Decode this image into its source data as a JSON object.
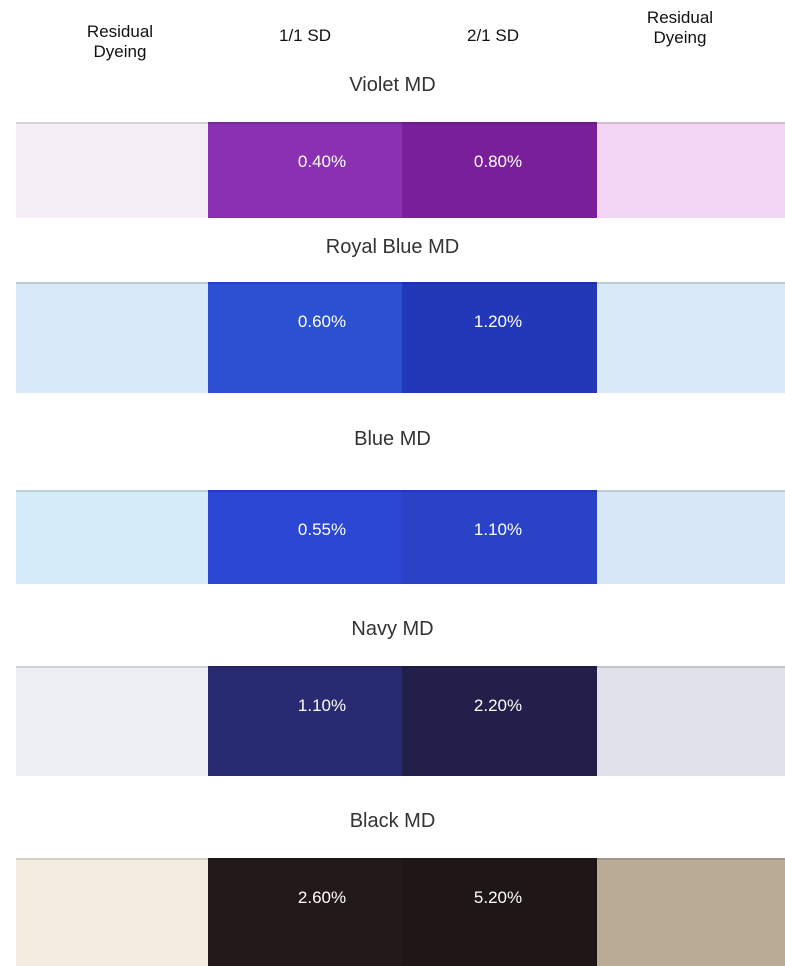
{
  "header": {
    "columns": [
      "Residual Dyeing",
      "1/1 SD",
      "2/1 SD",
      "Residual Dyeing"
    ]
  },
  "rows": [
    {
      "title": "Violet MD",
      "labels": [
        "0.40%",
        "0.80%"
      ],
      "colors": [
        "#f5eef6",
        "#8a30b2",
        "#7a1f9a",
        "#f3d6f3"
      ]
    },
    {
      "title": "Royal Blue MD",
      "labels": [
        "0.60%",
        "1.20%"
      ],
      "colors": [
        "#d7eaf8",
        "#2b50d2",
        "#2338b8",
        "#d9e9f8"
      ]
    },
    {
      "title": "Blue MD",
      "labels": [
        "0.55%",
        "1.10%"
      ],
      "colors": [
        "#d6ebfa",
        "#2b46d2",
        "#2a42c6",
        "#d9e8f8"
      ]
    },
    {
      "title": "Navy MD",
      "labels": [
        "1.10%",
        "2.20%"
      ],
      "colors": [
        "#eeeff5",
        "#292b72",
        "#221f4a",
        "#e1e1eb"
      ]
    },
    {
      "title": "Black MD",
      "labels": [
        "2.60%",
        "5.20%"
      ],
      "colors": [
        "#f2ede0",
        "#231919",
        "#1f1717",
        "#b9ab95"
      ]
    }
  ]
}
